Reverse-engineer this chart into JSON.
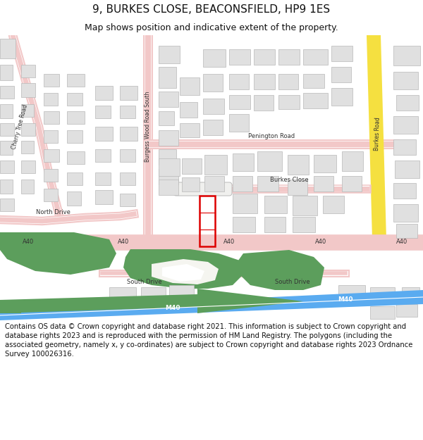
{
  "title": "9, BURKES CLOSE, BEACONSFIELD, HP9 1ES",
  "subtitle": "Map shows position and indicative extent of the property.",
  "title_fontsize": 11,
  "subtitle_fontsize": 9,
  "bg_color": "#ffffff",
  "map_bg": "#f8f8f5",
  "road_pink": "#f2c8c8",
  "building_fill": "#e0e0e0",
  "building_edge": "#b8b8b8",
  "green_fill": "#5c9e5c",
  "motorway_blue": "#5aabf0",
  "yellow_road": "#f5e040",
  "plot_red": "#dd0000",
  "copyright_text": "Contains OS data © Crown copyright and database right 2021. This information is subject to Crown copyright and database rights 2023 and is reproduced with the permission of HM Land Registry. The polygons (including the associated geometry, namely x, y co-ordinates) are subject to Crown copyright and database rights 2023 Ordnance Survey 100026316.",
  "copyright_fontsize": 7.2
}
